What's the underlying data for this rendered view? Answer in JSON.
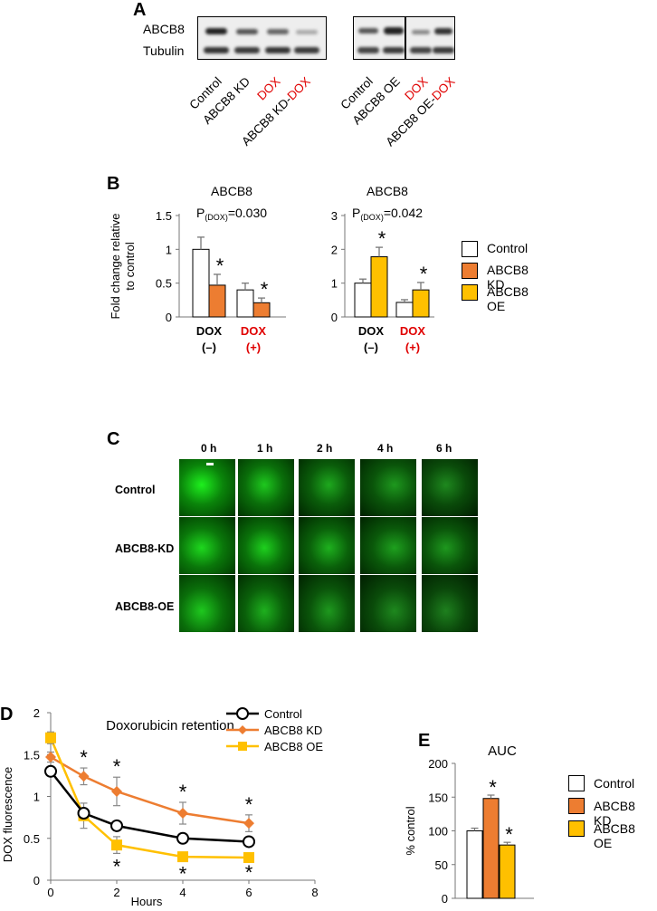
{
  "panel_a": {
    "label": "A",
    "row_labels": [
      "ABCB8",
      "Tubulin"
    ],
    "lanes_left": [
      {
        "text": "Control",
        "color": "#000000"
      },
      {
        "text": "ABCB8 KD",
        "color": "#000000"
      },
      {
        "text": "DOX",
        "color": "#e00000"
      },
      {
        "parts": [
          {
            "text": "ABCB8 KD-",
            "color": "#000000"
          },
          {
            "text": "DOX",
            "color": "#e00000"
          }
        ]
      }
    ],
    "lanes_right": [
      {
        "text": "Control",
        "color": "#000000"
      },
      {
        "text": "ABCB8 OE",
        "color": "#000000"
      },
      {
        "text": "DOX",
        "color": "#e00000"
      },
      {
        "parts": [
          {
            "text": "ABCB8 OE-",
            "color": "#000000"
          },
          {
            "text": "DOX",
            "color": "#e00000"
          }
        ]
      }
    ]
  },
  "panel_b": {
    "label": "B",
    "legend": [
      {
        "name": "Control",
        "color": "#ffffff"
      },
      {
        "name": "ABCB8 KD",
        "color": "#ed7d31"
      },
      {
        "name": "ABCB8 OE",
        "color": "#ffc000"
      }
    ]
  },
  "panel_c": {
    "label": "C",
    "time_labels": [
      "0 h",
      "1 h",
      "2 h",
      "4 h",
      "6 h"
    ],
    "row_labels": [
      "Control",
      "ABCB8-KD",
      "ABCB8-OE"
    ]
  },
  "panel_d": {
    "label": "D"
  },
  "panel_e": {
    "label": "E",
    "legend": [
      {
        "name": "Control",
        "color": "#ffffff"
      },
      {
        "name": "ABCB8 KD",
        "color": "#ed7d31"
      },
      {
        "name": "ABCB8 OE",
        "color": "#ffc000"
      }
    ]
  },
  "chart_data": [
    {
      "id": "B-left",
      "type": "bar",
      "title": "ABCB8",
      "subtitle": "P(DOX)=0.030",
      "ylabel": "Fold change relative to control",
      "ylim": [
        0,
        1.5
      ],
      "yticks": [
        "0",
        "0.5",
        "1",
        "1.5"
      ],
      "categories": [
        {
          "top": "DOX",
          "bottom": "(–)",
          "color": "#000000"
        },
        {
          "top": "DOX",
          "bottom": "(+)",
          "color": "#e00000"
        }
      ],
      "series": [
        {
          "name": "Control",
          "color": "#ffffff",
          "values": [
            1.0,
            0.4
          ],
          "errors": [
            0.18,
            0.1
          ]
        },
        {
          "name": "ABCB8 KD",
          "color": "#ed7d31",
          "values": [
            0.47,
            0.21
          ],
          "errors": [
            0.16,
            0.07
          ],
          "signif": [
            "*",
            "*"
          ]
        }
      ]
    },
    {
      "id": "B-right",
      "type": "bar",
      "title": "ABCB8",
      "subtitle": "P(DOX)=0.042",
      "ylim": [
        0,
        3
      ],
      "yticks": [
        "0",
        "1",
        "2",
        "3"
      ],
      "categories": [
        {
          "top": "DOX",
          "bottom": "(–)",
          "color": "#000000"
        },
        {
          "top": "DOX",
          "bottom": "(+)",
          "color": "#e00000"
        }
      ],
      "series": [
        {
          "name": "Control",
          "color": "#ffffff",
          "values": [
            1.0,
            0.43
          ],
          "errors": [
            0.12,
            0.08
          ]
        },
        {
          "name": "ABCB8 OE",
          "color": "#ffc000",
          "values": [
            1.78,
            0.8
          ],
          "errors": [
            0.28,
            0.22
          ],
          "signif": [
            "*",
            "*"
          ]
        }
      ]
    },
    {
      "id": "D",
      "type": "line",
      "title": "Doxorubicin retention",
      "xlabel": "Hours",
      "ylabel": "DOX fluorescence",
      "xlim": [
        0,
        8
      ],
      "ylim": [
        0,
        2
      ],
      "xticks": [
        "0",
        "2",
        "4",
        "6",
        "8"
      ],
      "yticks": [
        "0",
        "0.5",
        "1",
        "1.5",
        "2"
      ],
      "x": [
        0,
        1,
        2,
        4,
        6
      ],
      "legend_position": "top-right",
      "series": [
        {
          "name": "Control",
          "color": "#000000",
          "marker": "circle",
          "values": [
            1.3,
            0.8,
            0.65,
            0.5,
            0.46
          ],
          "errors": [
            0,
            0.05,
            0.05,
            0.03,
            0.03
          ]
        },
        {
          "name": "ABCB8 KD",
          "color": "#ed7d31",
          "marker": "diamond",
          "values": [
            1.47,
            1.24,
            1.06,
            0.8,
            0.68
          ],
          "errors": [
            0.06,
            0.1,
            0.17,
            0.13,
            0.1
          ],
          "signif": [
            "",
            "*",
            "*",
            "*",
            "*"
          ]
        },
        {
          "name": "ABCB8 OE",
          "color": "#ffc000",
          "marker": "square",
          "values": [
            1.7,
            0.77,
            0.42,
            0.28,
            0.27
          ],
          "errors": [
            0.07,
            0.15,
            0.1,
            0.05,
            0.02
          ],
          "signif": [
            "",
            "",
            "*",
            "*",
            "*"
          ]
        }
      ]
    },
    {
      "id": "E",
      "type": "bar",
      "title": "AUC",
      "ylabel": "% control",
      "ylim": [
        0,
        200
      ],
      "yticks": [
        "0",
        "50",
        "100",
        "150",
        "200"
      ],
      "categories": [
        "Control",
        "ABCB8 KD",
        "ABCB8 OE"
      ],
      "values": [
        100,
        148,
        79
      ],
      "errors": [
        4,
        5,
        4
      ],
      "signif": [
        "",
        "*",
        "*"
      ],
      "colors": [
        "#ffffff",
        "#ed7d31",
        "#ffc000"
      ]
    }
  ]
}
